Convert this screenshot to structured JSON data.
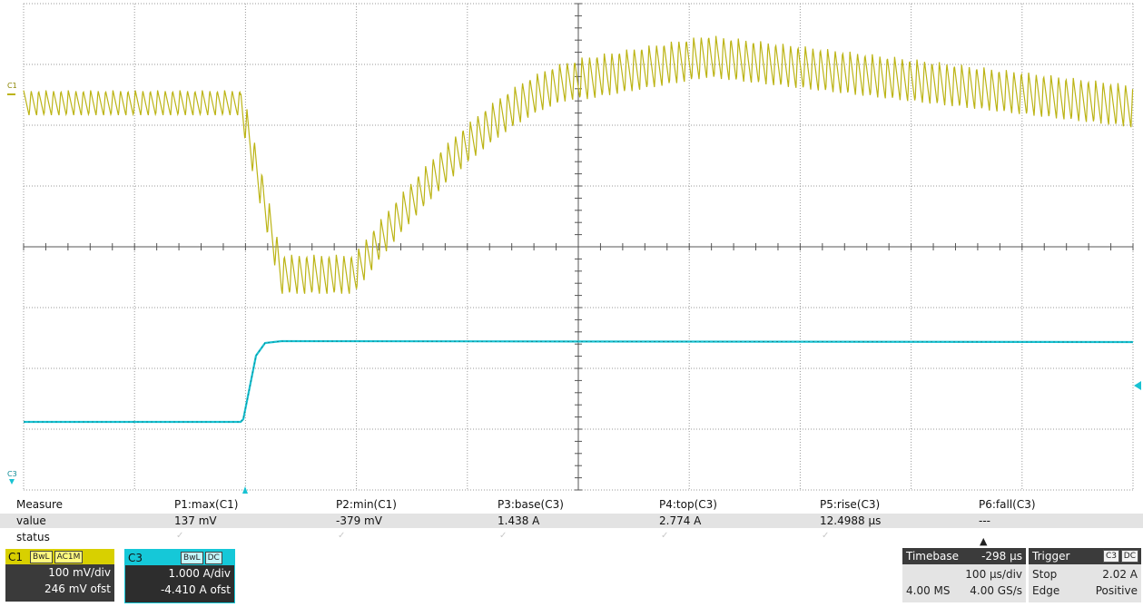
{
  "display": {
    "grid_divisions": {
      "horizontal": 10,
      "vertical": 8
    },
    "channel_colors": {
      "C1": "#bcb415",
      "C3": "#18c2d2"
    },
    "c1_marker": "C1",
    "c3_marker": "C3"
  },
  "measure": {
    "header_label": "Measure",
    "value_label": "value",
    "status_label": "status",
    "params": [
      {
        "name": "P1:max(C1)",
        "value": "137 mV",
        "status": "check-icon"
      },
      {
        "name": "P2:min(C1)",
        "value": "-379 mV",
        "status": "check-icon"
      },
      {
        "name": "P3:base(C3)",
        "value": "1.438 A",
        "status": "check-icon"
      },
      {
        "name": "P4:top(C3)",
        "value": "2.774 A",
        "status": "check-icon"
      },
      {
        "name": "P5:rise(C3)",
        "value": "12.4988 µs",
        "status": "check-icon"
      },
      {
        "name": "P6:fall(C3)",
        "value": "---",
        "status": "warning-icon"
      }
    ]
  },
  "channels": {
    "c1": {
      "name": "C1",
      "tag1": "BwL",
      "tag2": "AC1M",
      "scale": "100 mV/div",
      "offset": "246 mV ofst"
    },
    "c3": {
      "name": "C3",
      "tag1": "BwL",
      "tag2": "DC",
      "scale": "1.000 A/div",
      "offset": "-4.410 A ofst"
    }
  },
  "timebase": {
    "label": "Timebase",
    "delay": "-298 µs",
    "per_div": "100 µs/div",
    "samples": "4.00 MS",
    "rate": "4.00 GS/s"
  },
  "trigger": {
    "label": "Trigger",
    "source": "C3",
    "coupling": "DC",
    "mode": "Stop",
    "level": "2.02 A",
    "type": "Edge",
    "slope": "Positive"
  }
}
